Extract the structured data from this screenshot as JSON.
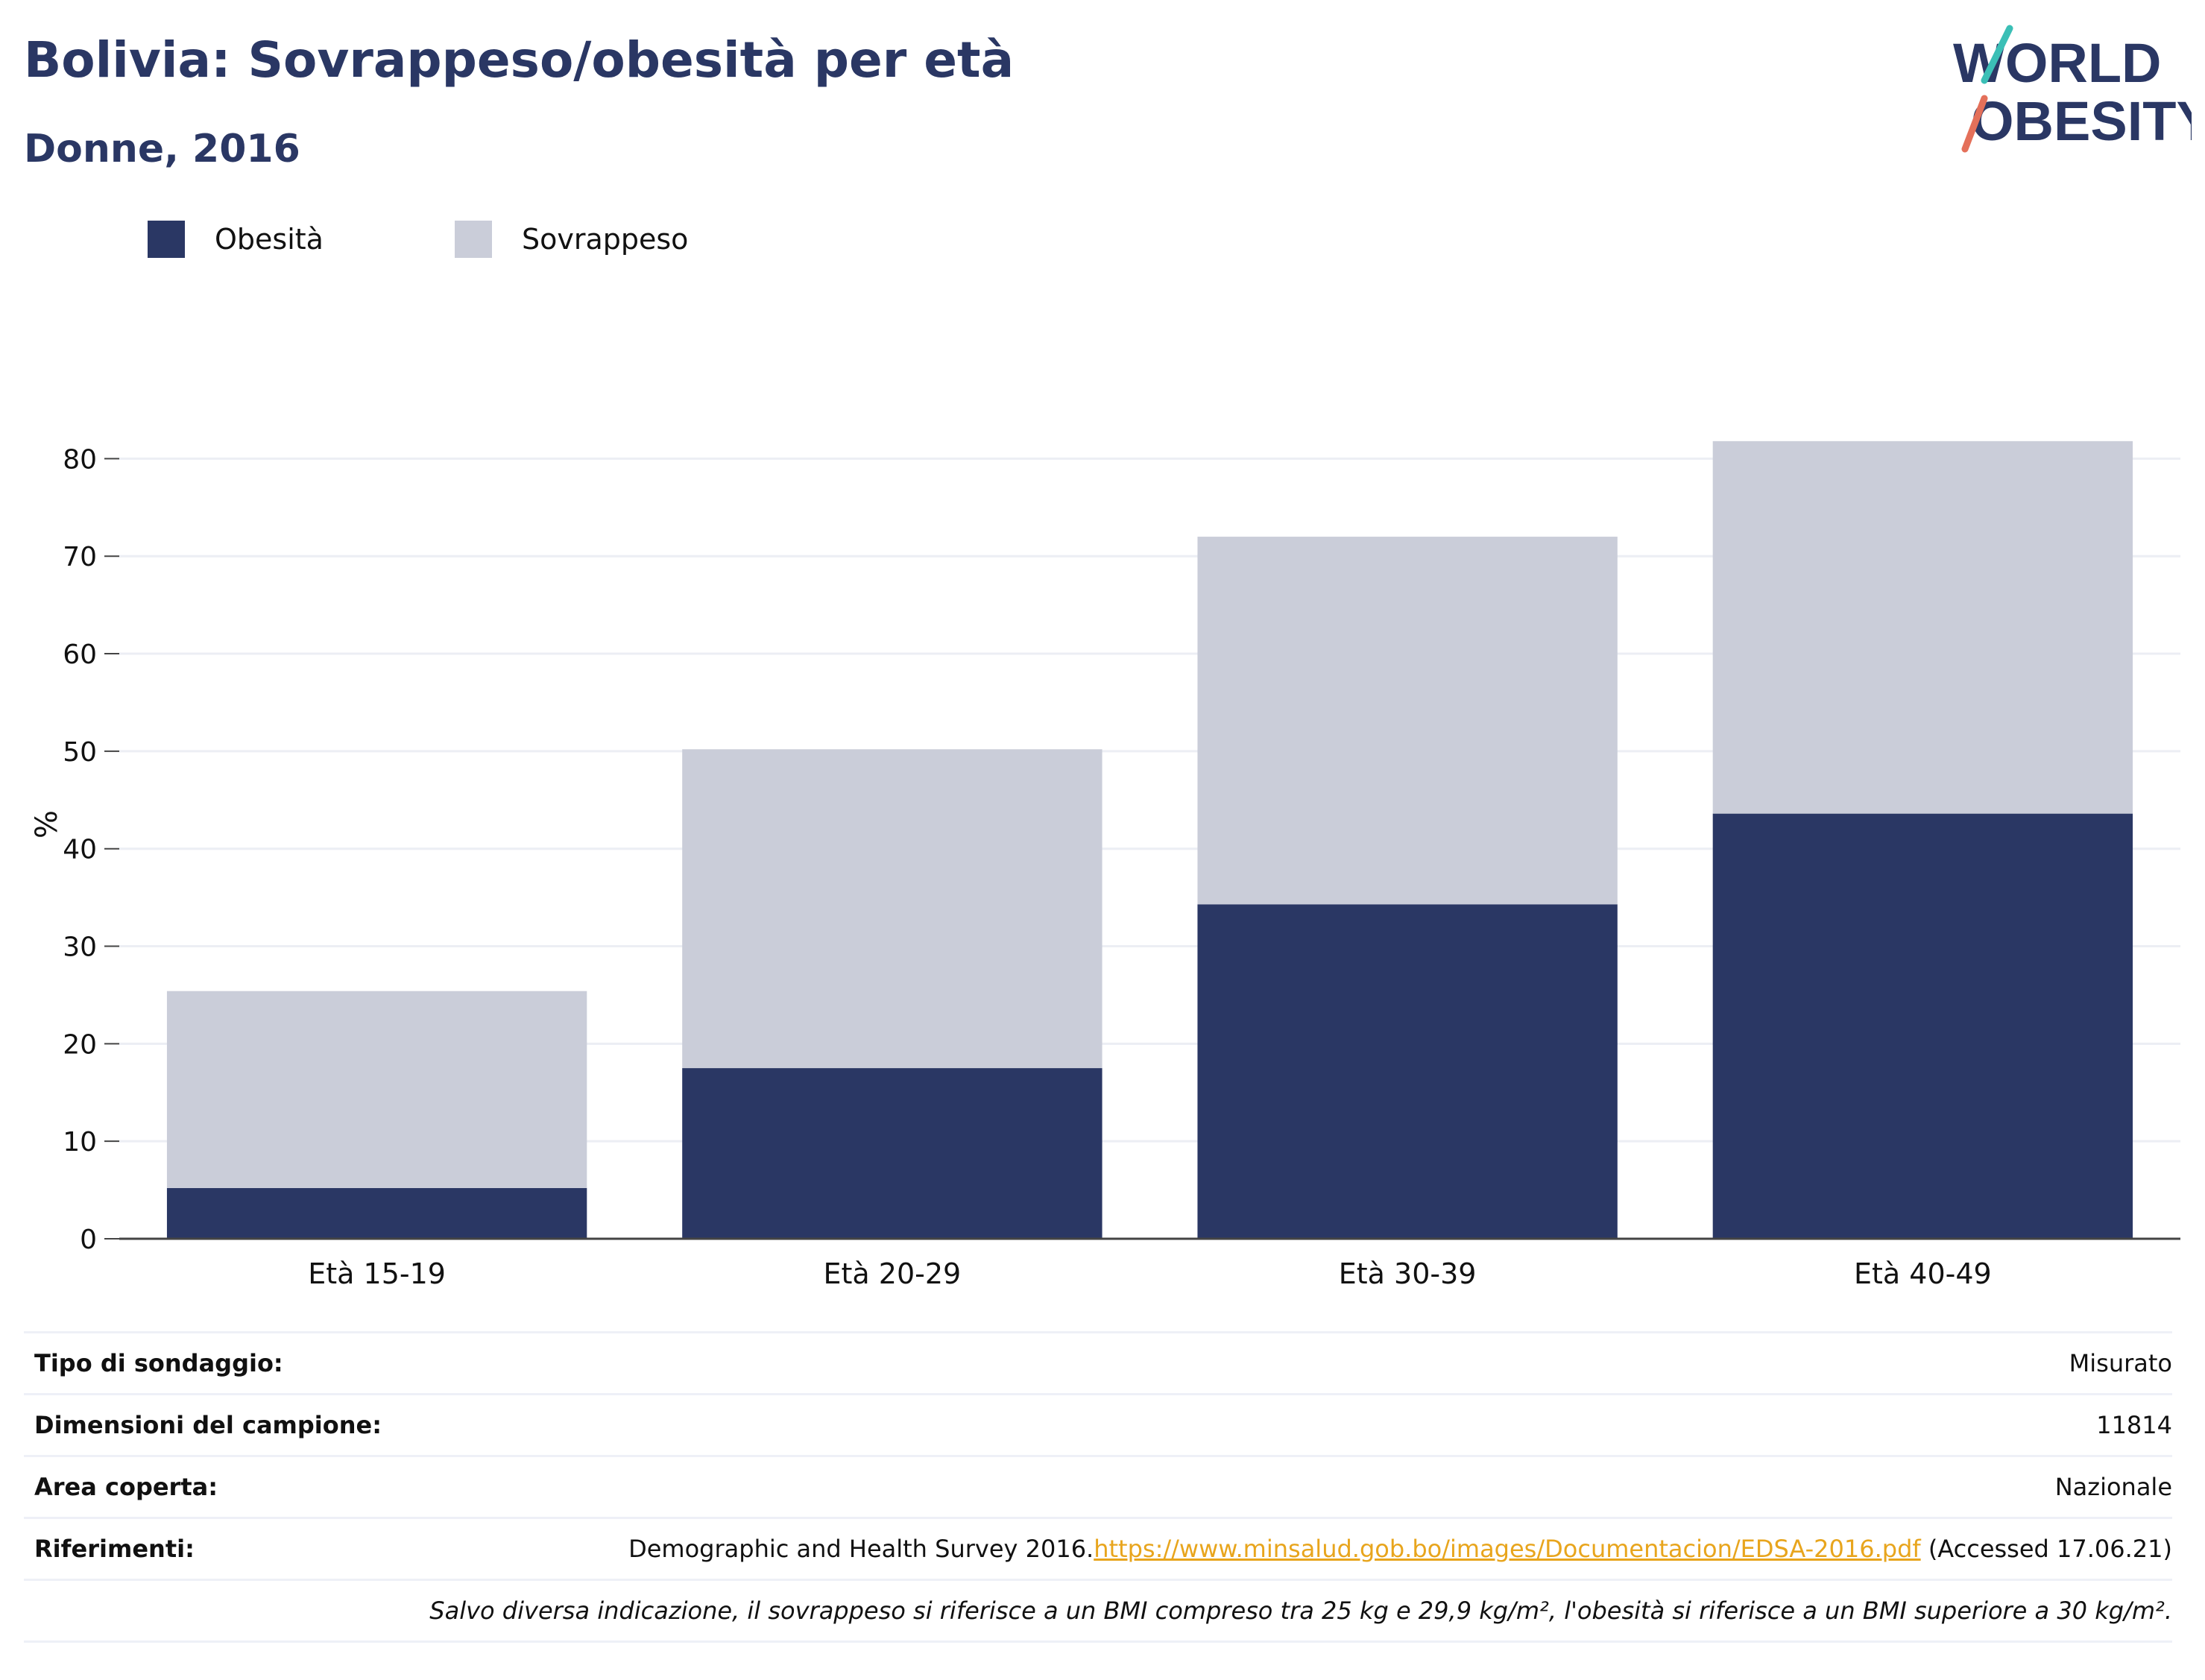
{
  "header": {
    "title": "Bolivia: Sovrappeso/obesità per età",
    "subtitle": "Donne, 2016"
  },
  "logo": {
    "line1": "WORLD",
    "line2": "OBESITY",
    "colors": {
      "text": "#2a3764",
      "slash_top": "#3bbfb6",
      "slash_bottom": "#e4705a"
    }
  },
  "colors": {
    "obesity": "#2a3764",
    "overweight": "#cacdd9",
    "grid": "#eceef4",
    "axis": "#444444"
  },
  "chart_data": {
    "type": "bar",
    "stacked": true,
    "categories": [
      "Età 15-19",
      "Età 20-29",
      "Età 30-39",
      "Età 40-49"
    ],
    "series": [
      {
        "name": "Obesità",
        "values": [
          5.2,
          17.5,
          34.3,
          43.6
        ],
        "color": "#2a3764"
      },
      {
        "name": "Sovrappeso",
        "values": [
          20.2,
          32.7,
          37.7,
          38.2
        ],
        "color": "#cacdd9"
      }
    ],
    "ylabel": "%",
    "ylim": [
      0,
      85
    ],
    "yticks": [
      0,
      10,
      20,
      30,
      40,
      50,
      60,
      70,
      80
    ],
    "grid": true,
    "legend": "top-left"
  },
  "info": {
    "rows": [
      {
        "label": "Tipo di sondaggio:",
        "value": "Misurato"
      },
      {
        "label": "Dimensioni del campione:",
        "value": "11814"
      },
      {
        "label": "Area coperta:",
        "value": "Nazionale"
      }
    ],
    "references": {
      "label": "Riferimenti:",
      "prefix": "Demographic and Health Survey 2016.",
      "link": "https://www.minsalud.gob.bo/images/Documentacion/EDSA-2016.pdf",
      "suffix": " (Accessed 17.06.21)"
    },
    "note": "Salvo diversa indicazione, il sovrappeso si riferisce a un BMI compreso tra 25 kg e 29,9 kg/m², l'obesità si riferisce a un BMI superiore a 30 kg/m²."
  }
}
